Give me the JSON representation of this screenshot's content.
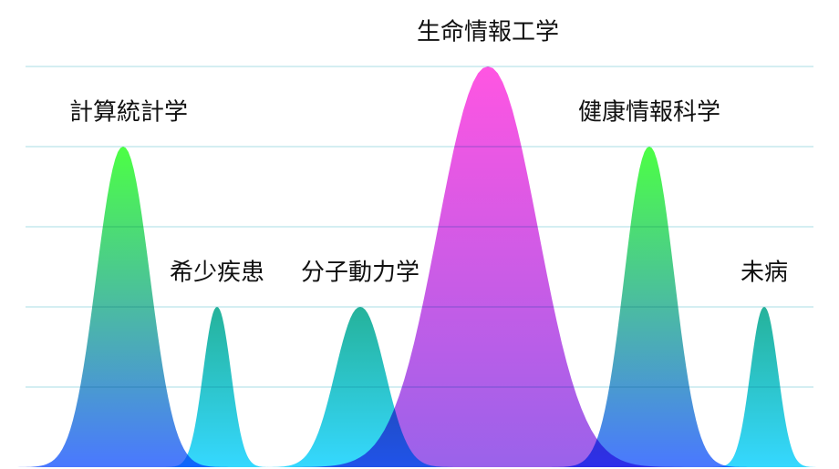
{
  "chart_data": {
    "type": "peaks",
    "categories": [
      "計算統計学",
      "希少疾患",
      "分子動力学",
      "生命情報工学",
      "健康情報科学",
      "未病"
    ],
    "values": [
      4,
      2,
      2,
      5,
      4,
      2
    ],
    "colors": [
      [
        "#4cff44",
        "#4a78ff"
      ],
      [
        "#25b29a",
        "#35d8ff"
      ],
      [
        "#25b29a",
        "#35d8ff"
      ],
      [
        "#ff55e2",
        "#9a62ea"
      ],
      [
        "#4cff44",
        "#4a78ff"
      ],
      [
        "#25b29a",
        "#35d8ff"
      ]
    ],
    "ylim": [
      0,
      5
    ],
    "yticks": [
      1,
      2,
      3,
      4,
      5
    ],
    "grid": true
  }
}
